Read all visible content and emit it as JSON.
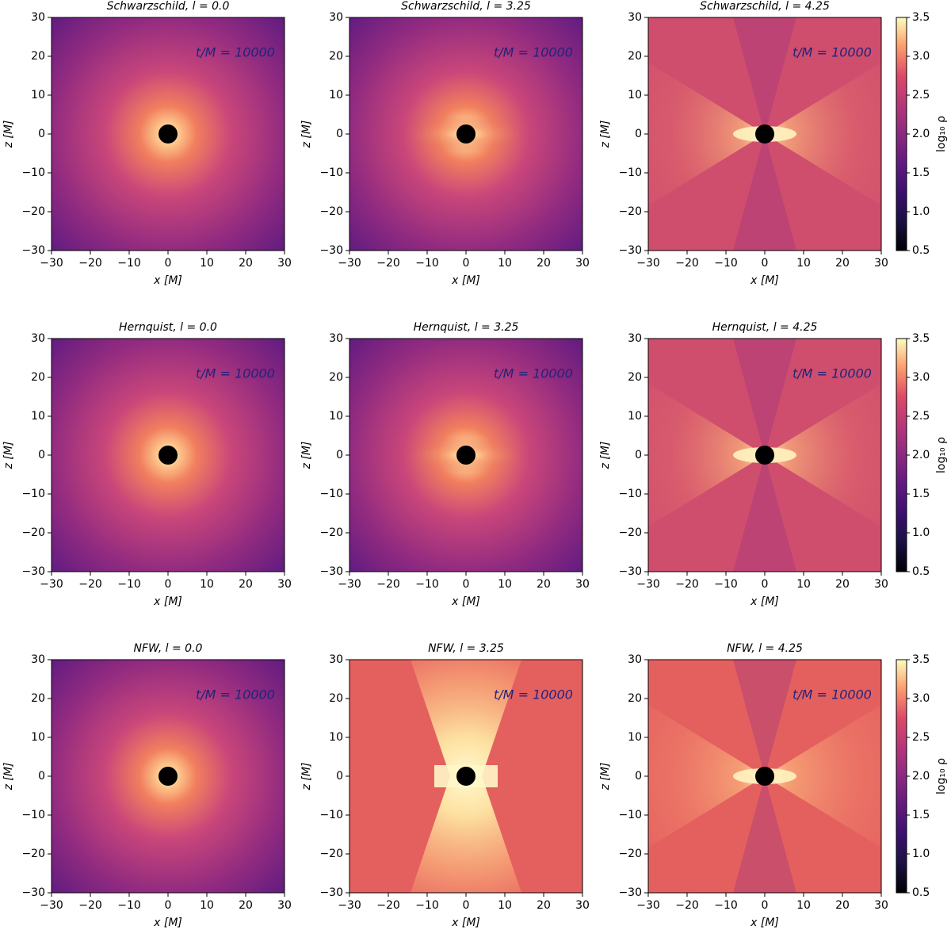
{
  "chart_data": [
    {
      "type": "heatmap",
      "title": "Schwarzschild, l = 0.0",
      "annotation": "t/M = 10000",
      "xlabel": "x [M]",
      "ylabel": "z [M]",
      "xlim": [
        -30,
        30
      ],
      "ylim": [
        -30,
        30
      ],
      "xticks": [
        {
          "value": -30,
          "label": "−30"
        },
        {
          "value": -20,
          "label": "−20"
        },
        {
          "value": -10,
          "label": "−10"
        },
        0,
        10,
        20,
        30
      ],
      "yticks": [
        {
          "value": -30,
          "label": "−30"
        },
        {
          "value": -20,
          "label": "−20"
        },
        {
          "value": -10,
          "label": "−10"
        },
        0,
        10,
        20,
        30
      ]
    },
    {
      "type": "heatmap",
      "title": "Schwarzschild, l = 3.25",
      "annotation": "t/M = 10000",
      "xlabel": "x [M]",
      "ylabel": "z [M]",
      "xlim": [
        -30,
        30
      ],
      "ylim": [
        -30,
        30
      ],
      "xticks": [
        {
          "value": -30,
          "label": "−30"
        },
        {
          "value": -20,
          "label": "−20"
        },
        {
          "value": -10,
          "label": "−10"
        },
        0,
        10,
        20,
        30
      ],
      "yticks": [
        {
          "value": -30,
          "label": "−30"
        },
        {
          "value": -20,
          "label": "−20"
        },
        {
          "value": -10,
          "label": "−10"
        },
        0,
        10,
        20,
        30
      ]
    },
    {
      "type": "heatmap",
      "title": "Schwarzschild, l = 4.25",
      "annotation": "t/M = 10000",
      "xlabel": "x [M]",
      "ylabel": "z [M]",
      "xlim": [
        -30,
        30
      ],
      "ylim": [
        -30,
        30
      ],
      "xticks": [
        {
          "value": -30,
          "label": "−30"
        },
        {
          "value": -20,
          "label": "−20"
        },
        {
          "value": -10,
          "label": "−10"
        },
        0,
        10,
        20,
        30
      ],
      "yticks": [
        {
          "value": -30,
          "label": "−30"
        },
        {
          "value": -20,
          "label": "−20"
        },
        {
          "value": -10,
          "label": "−10"
        },
        0,
        10,
        20,
        30
      ],
      "colorbar": {
        "label": "log₁₀ ρ",
        "lim": [
          0.5,
          3.5
        ],
        "ticks": [
          0.5,
          {
            "value": 1,
            "label": "1.0"
          },
          1.5,
          {
            "value": 2,
            "label": "2.0"
          },
          2.5,
          {
            "value": 3,
            "label": "3.0"
          },
          3.5
        ]
      }
    },
    {
      "type": "heatmap",
      "title": "Hernquist, l = 0.0",
      "annotation": "t/M = 10000",
      "xlabel": "x [M]",
      "ylabel": "z [M]",
      "xlim": [
        -30,
        30
      ],
      "ylim": [
        -30,
        30
      ],
      "xticks": [
        {
          "value": -30,
          "label": "−30"
        },
        {
          "value": -20,
          "label": "−20"
        },
        {
          "value": -10,
          "label": "−10"
        },
        0,
        10,
        20,
        30
      ],
      "yticks": [
        {
          "value": -30,
          "label": "−30"
        },
        {
          "value": -20,
          "label": "−20"
        },
        {
          "value": -10,
          "label": "−10"
        },
        0,
        10,
        20,
        30
      ]
    },
    {
      "type": "heatmap",
      "title": "Hernquist, l = 3.25",
      "annotation": "t/M = 10000",
      "xlabel": "x [M]",
      "ylabel": "z [M]",
      "xlim": [
        -30,
        30
      ],
      "ylim": [
        -30,
        30
      ],
      "xticks": [
        {
          "value": -30,
          "label": "−30"
        },
        {
          "value": -20,
          "label": "−20"
        },
        {
          "value": -10,
          "label": "−10"
        },
        0,
        10,
        20,
        30
      ],
      "yticks": [
        {
          "value": -30,
          "label": "−30"
        },
        {
          "value": -20,
          "label": "−20"
        },
        {
          "value": -10,
          "label": "−10"
        },
        0,
        10,
        20,
        30
      ]
    },
    {
      "type": "heatmap",
      "title": "Hernquist, l = 4.25",
      "annotation": "t/M = 10000",
      "xlabel": "x [M]",
      "ylabel": "z [M]",
      "xlim": [
        -30,
        30
      ],
      "ylim": [
        -30,
        30
      ],
      "xticks": [
        {
          "value": -30,
          "label": "−30"
        },
        {
          "value": -20,
          "label": "−20"
        },
        {
          "value": -10,
          "label": "−10"
        },
        0,
        10,
        20,
        30
      ],
      "yticks": [
        {
          "value": -30,
          "label": "−30"
        },
        {
          "value": -20,
          "label": "−20"
        },
        {
          "value": -10,
          "label": "−10"
        },
        0,
        10,
        20,
        30
      ],
      "colorbar": {
        "label": "log₁₀ ρ",
        "lim": [
          0.5,
          3.5
        ],
        "ticks": [
          0.5,
          {
            "value": 1,
            "label": "1.0"
          },
          1.5,
          {
            "value": 2,
            "label": "2.0"
          },
          2.5,
          {
            "value": 3,
            "label": "3.0"
          },
          3.5
        ]
      }
    },
    {
      "type": "heatmap",
      "title": "NFW, l = 0.0",
      "annotation": "t/M = 10000",
      "xlabel": "x [M]",
      "ylabel": "z [M]",
      "xlim": [
        -30,
        30
      ],
      "ylim": [
        -30,
        30
      ],
      "xticks": [
        {
          "value": -30,
          "label": "−30"
        },
        {
          "value": -20,
          "label": "−20"
        },
        {
          "value": -10,
          "label": "−10"
        },
        0,
        10,
        20,
        30
      ],
      "yticks": [
        {
          "value": -30,
          "label": "−30"
        },
        {
          "value": -20,
          "label": "−20"
        },
        {
          "value": -10,
          "label": "−10"
        },
        0,
        10,
        20,
        30
      ]
    },
    {
      "type": "heatmap",
      "title": "NFW, l = 3.25",
      "annotation": "t/M = 10000",
      "xlabel": "x [M]",
      "ylabel": "z [M]",
      "xlim": [
        -30,
        30
      ],
      "ylim": [
        -30,
        30
      ],
      "xticks": [
        {
          "value": -30,
          "label": "−30"
        },
        {
          "value": -20,
          "label": "−20"
        },
        {
          "value": -10,
          "label": "−10"
        },
        0,
        10,
        20,
        30
      ],
      "yticks": [
        {
          "value": -30,
          "label": "−30"
        },
        {
          "value": -20,
          "label": "−20"
        },
        {
          "value": -10,
          "label": "−10"
        },
        0,
        10,
        20,
        30
      ]
    },
    {
      "type": "heatmap",
      "title": "NFW, l = 4.25",
      "annotation": "t/M = 10000",
      "xlabel": "x [M]",
      "ylabel": "z [M]",
      "xlim": [
        -30,
        30
      ],
      "ylim": [
        -30,
        30
      ],
      "xticks": [
        {
          "value": -30,
          "label": "−30"
        },
        {
          "value": -20,
          "label": "−20"
        },
        {
          "value": -10,
          "label": "−10"
        },
        0,
        10,
        20,
        30
      ],
      "yticks": [
        {
          "value": -30,
          "label": "−30"
        },
        {
          "value": -20,
          "label": "−20"
        },
        {
          "value": -10,
          "label": "−10"
        },
        0,
        10,
        20,
        30
      ],
      "colorbar": {
        "label": "log₁₀ ρ",
        "lim": [
          0.5,
          3.5
        ],
        "ticks": [
          0.5,
          {
            "value": 1,
            "label": "1.0"
          },
          1.5,
          {
            "value": 2,
            "label": "2.0"
          },
          2.5,
          {
            "value": 3,
            "label": "3.0"
          },
          3.5
        ]
      }
    }
  ]
}
